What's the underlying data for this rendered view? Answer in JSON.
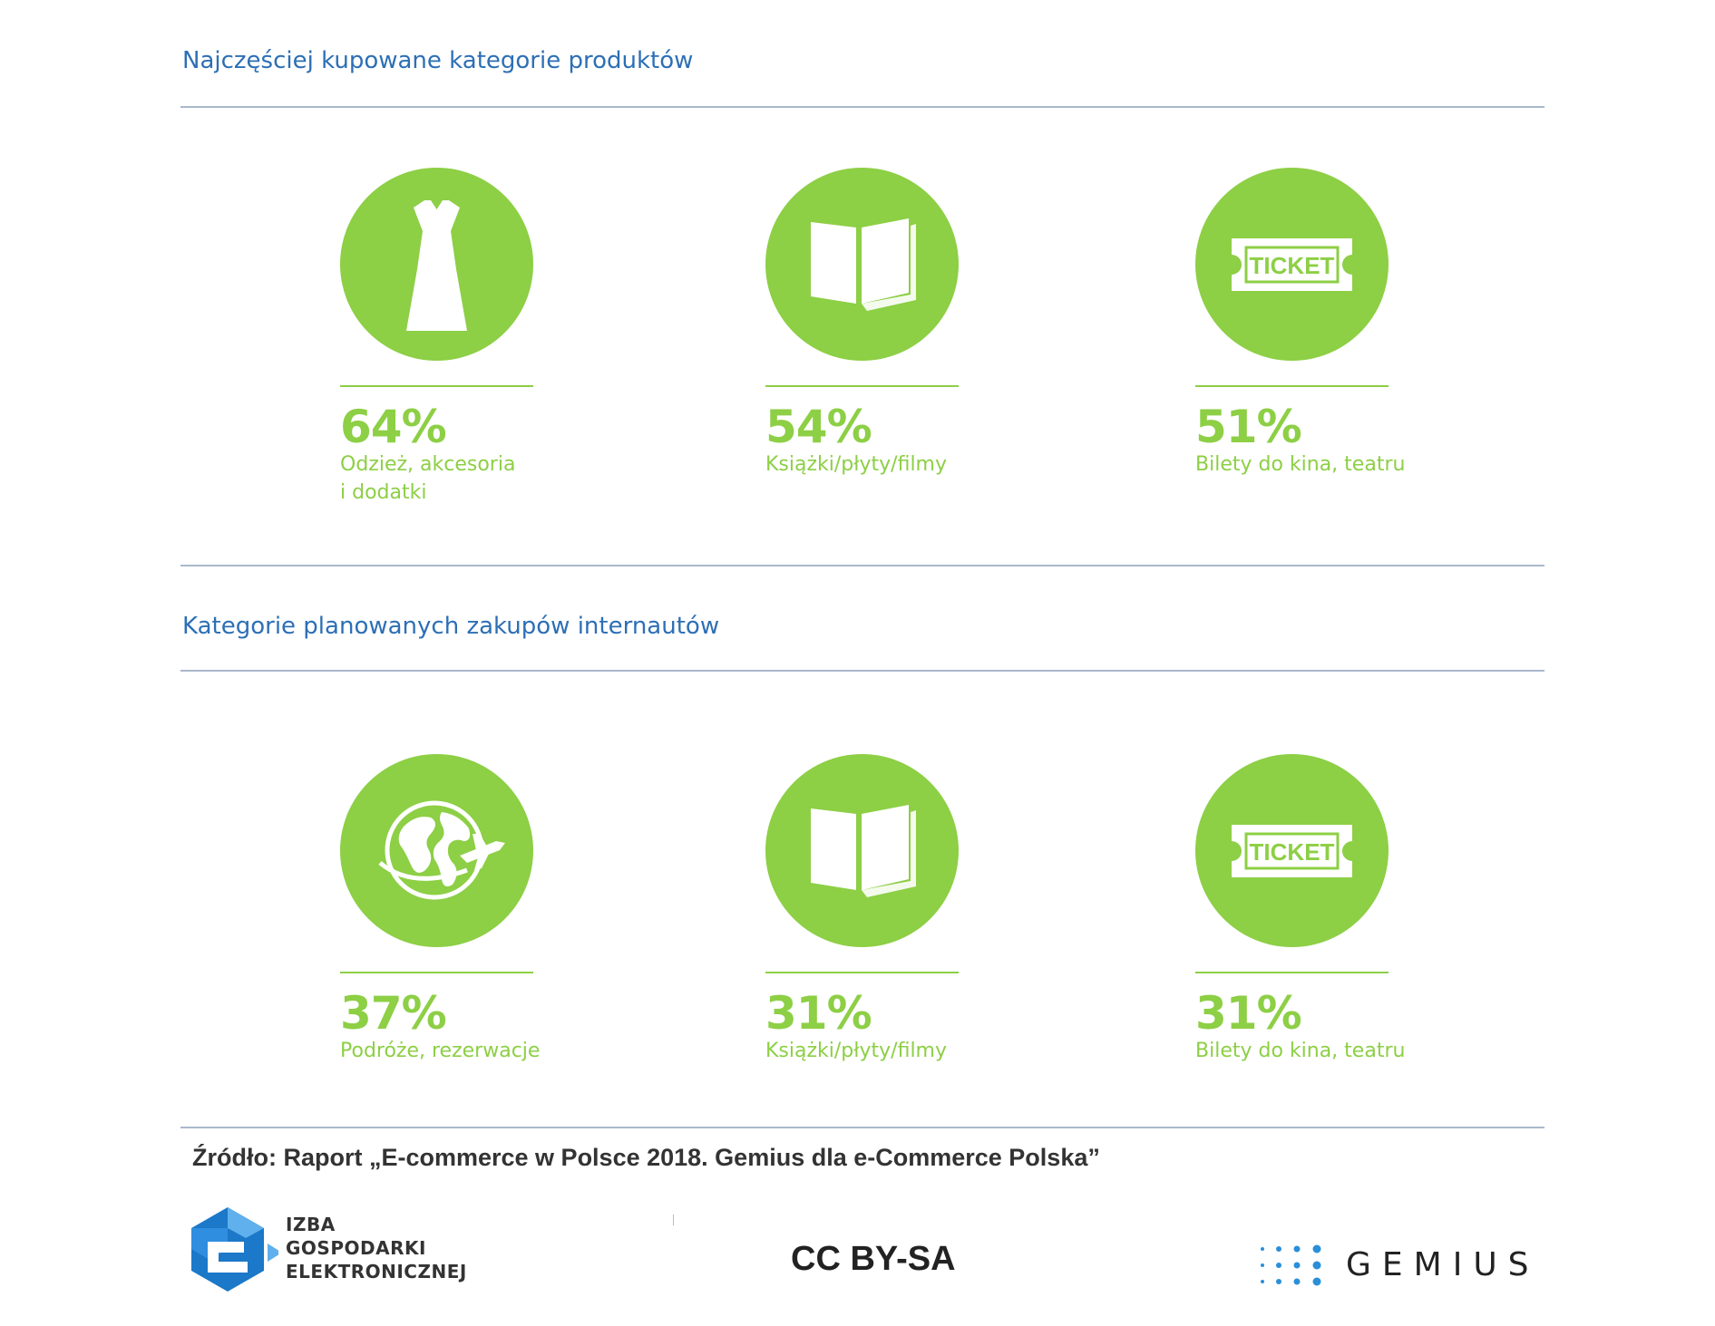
{
  "colors": {
    "accent_green": "#8dcf45",
    "title_blue": "#2d6fb5",
    "rule": "#aab8cc",
    "ige_blue": "#1c78c8",
    "gemius_blue": "#2a8fd8"
  },
  "sections": [
    {
      "title": "Najczęściej kupowane kategorie produktów",
      "items": [
        {
          "icon": "dress-icon",
          "value": "64%",
          "label_lines": [
            "Odzież, akcesoria",
            "i dodatki"
          ]
        },
        {
          "icon": "book-icon",
          "value": "54%",
          "label_lines": [
            "Książki/płyty/filmy"
          ]
        },
        {
          "icon": "ticket-icon",
          "value": "51%",
          "label_lines": [
            "Bilety do kina, teatru"
          ]
        }
      ]
    },
    {
      "title": "Kategorie planowanych zakupów internautów",
      "items": [
        {
          "icon": "globe-plane-icon",
          "value": "37%",
          "label_lines": [
            "Podróże, rezerwacje"
          ]
        },
        {
          "icon": "book-icon",
          "value": "31%",
          "label_lines": [
            "Książki/płyty/filmy"
          ]
        },
        {
          "icon": "ticket-icon",
          "value": "31%",
          "label_lines": [
            "Bilety do kina, teatru"
          ]
        }
      ]
    }
  ],
  "ticket_text": "TICKET",
  "source": "Źródło: Raport „E-commerce w Polsce 2018. Gemius dla e-Commerce Polska”",
  "footer": {
    "ige_lines": [
      "IZBA",
      "GOSPODARKI",
      "ELEKTRONICZNEJ"
    ],
    "license": "CC BY-SA",
    "gemius": "GEMIUS"
  }
}
